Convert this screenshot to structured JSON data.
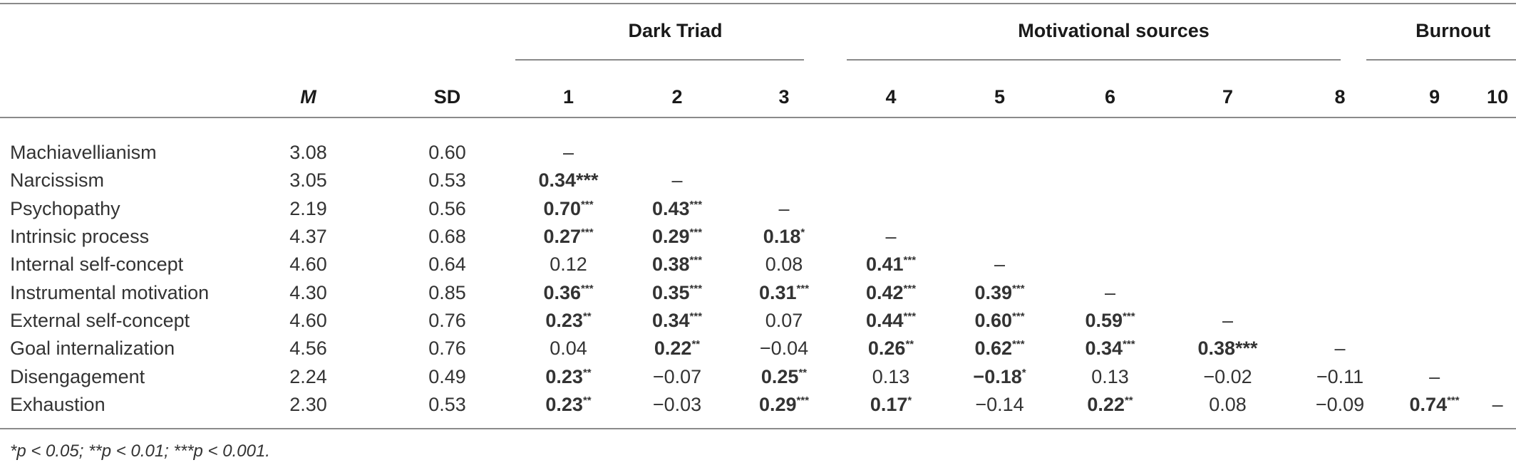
{
  "table": {
    "groups": [
      {
        "label": "Dark Triad",
        "span": 3
      },
      {
        "label": "Motivational sources",
        "span": 5
      },
      {
        "label": "Burnout",
        "span": 2
      }
    ],
    "headers": [
      "",
      "M",
      "SD",
      "1",
      "2",
      "3",
      "4",
      "5",
      "6",
      "7",
      "8",
      "9",
      "10"
    ],
    "rows": [
      {
        "label": "Machiavellianism",
        "mean": "3.08",
        "sd": "0.60",
        "cells": [
          {
            "v": "–"
          }
        ]
      },
      {
        "label": "Narcissism",
        "mean": "3.05",
        "sd": "0.53",
        "cells": [
          {
            "v": "0.34***",
            "bold": true,
            "inline": true
          },
          {
            "v": "–"
          }
        ]
      },
      {
        "label": "Psychopathy",
        "mean": "2.19",
        "sd": "0.56",
        "cells": [
          {
            "v": "0.70",
            "s": "***",
            "bold": true
          },
          {
            "v": "0.43",
            "s": "***",
            "bold": true
          },
          {
            "v": "–"
          }
        ]
      },
      {
        "label": "Intrinsic process",
        "mean": "4.37",
        "sd": "0.68",
        "cells": [
          {
            "v": "0.27",
            "s": "***",
            "bold": true
          },
          {
            "v": "0.29",
            "s": "***",
            "bold": true
          },
          {
            "v": "0.18",
            "s": "*",
            "bold": true
          },
          {
            "v": "–"
          }
        ]
      },
      {
        "label": "Internal self-concept",
        "mean": "4.60",
        "sd": "0.64",
        "cells": [
          {
            "v": "0.12"
          },
          {
            "v": "0.38",
            "s": "***",
            "bold": true
          },
          {
            "v": "0.08"
          },
          {
            "v": "0.41",
            "s": "***",
            "bold": true
          },
          {
            "v": "–"
          }
        ]
      },
      {
        "label": "Instrumental motivation",
        "mean": "4.30",
        "sd": "0.85",
        "cells": [
          {
            "v": "0.36",
            "s": "***",
            "bold": true
          },
          {
            "v": "0.35",
            "s": "***",
            "bold": true
          },
          {
            "v": "0.31",
            "s": "***",
            "bold": true
          },
          {
            "v": "0.42",
            "s": "***",
            "bold": true
          },
          {
            "v": "0.39",
            "s": "***",
            "bold": true
          },
          {
            "v": "–"
          }
        ]
      },
      {
        "label": "External self-concept",
        "mean": "4.60",
        "sd": "0.76",
        "cells": [
          {
            "v": "0.23",
            "s": "**",
            "bold": true
          },
          {
            "v": "0.34",
            "s": "***",
            "bold": true
          },
          {
            "v": "0.07"
          },
          {
            "v": "0.44",
            "s": "***",
            "bold": true
          },
          {
            "v": "0.60",
            "s": "***",
            "bold": true
          },
          {
            "v": "0.59",
            "s": "***",
            "bold": true
          },
          {
            "v": "–"
          }
        ]
      },
      {
        "label": "Goal internalization",
        "mean": "4.56",
        "sd": "0.76",
        "cells": [
          {
            "v": "0.04"
          },
          {
            "v": "0.22",
            "s": "**",
            "bold": true
          },
          {
            "v": "−0.04"
          },
          {
            "v": "0.26",
            "s": "**",
            "bold": true
          },
          {
            "v": "0.62",
            "s": "***",
            "bold": true
          },
          {
            "v": "0.34",
            "s": "***",
            "bold": true
          },
          {
            "v": "0.38***",
            "bold": true,
            "inline": true
          },
          {
            "v": "–"
          }
        ]
      },
      {
        "label": "Disengagement",
        "mean": "2.24",
        "sd": "0.49",
        "cells": [
          {
            "v": "0.23",
            "s": "**",
            "bold": true
          },
          {
            "v": "−0.07"
          },
          {
            "v": "0.25",
            "s": "**",
            "bold": true
          },
          {
            "v": "0.13"
          },
          {
            "v": "−0.18",
            "s": "*",
            "bold": true
          },
          {
            "v": "0.13"
          },
          {
            "v": "−0.02"
          },
          {
            "v": "−0.11"
          },
          {
            "v": "–"
          }
        ]
      },
      {
        "label": "Exhaustion",
        "mean": "2.30",
        "sd": "0.53",
        "cells": [
          {
            "v": "0.23",
            "s": "**",
            "bold": true
          },
          {
            "v": "−0.03"
          },
          {
            "v": "0.29",
            "s": "***",
            "bold": true
          },
          {
            "v": "0.17",
            "s": "*",
            "bold": true
          },
          {
            "v": "−0.14"
          },
          {
            "v": "0.22",
            "s": "**",
            "bold": true
          },
          {
            "v": "0.08"
          },
          {
            "v": "−0.09"
          },
          {
            "v": "0.74",
            "s": "***",
            "bold": true
          },
          {
            "v": "–"
          }
        ]
      }
    ],
    "footnote": "*p < 0.05; **p < 0.01; ***p < 0.001."
  }
}
